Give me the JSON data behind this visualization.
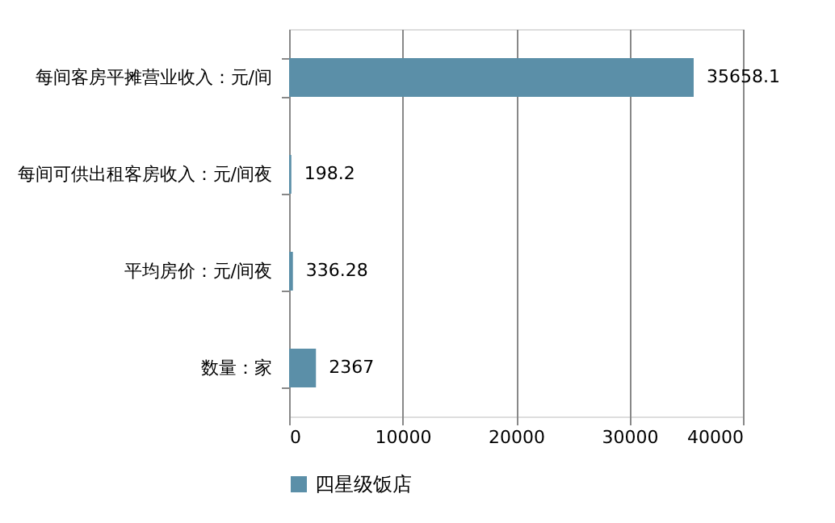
{
  "chart_data": {
    "type": "bar",
    "orientation": "horizontal",
    "categories": [
      "每间客房平摊营业收入：元/间",
      "每间可供出租客房收入：元/间夜",
      "平均房价：元/间夜",
      "数量：家"
    ],
    "series": [
      {
        "name": "四星级饭店",
        "color": "#5b8fa8",
        "values": [
          35658.1,
          198.2,
          336.28,
          2367
        ]
      }
    ],
    "xlim": [
      0,
      40000
    ],
    "xticks": [
      0,
      10000,
      20000,
      30000,
      40000
    ],
    "grid": "x",
    "legend": "bottom",
    "data_labels": true
  }
}
